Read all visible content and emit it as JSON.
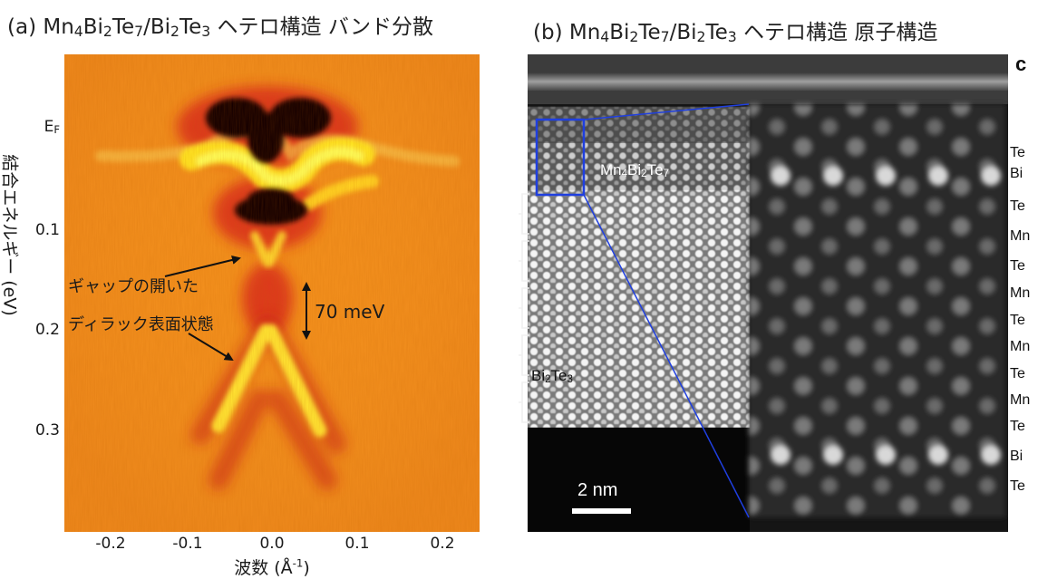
{
  "panel_a": {
    "title": {
      "prefix": "(a) Mn",
      "p1": "4",
      "t1": "Bi",
      "p2": "2",
      "t2": "Te",
      "p3": "7",
      "t3": "/Bi",
      "p4": "2",
      "t4": "Te",
      "p5": "3",
      "suffix": " ヘテロ構造 バンド分散"
    },
    "y_axis_label": "結合エネルギー (eV)",
    "y_ticks": {
      "ef_main": "E",
      "ef_sub": "F",
      "t1": "0.1",
      "t2": "0.2",
      "t3": "0.3"
    },
    "x_ticks": [
      "-0.2",
      "-0.1",
      "0.0",
      "0.1",
      "0.2"
    ],
    "x_axis_label": {
      "text": "波数 (Å",
      "sup": "-1",
      "close": ")"
    },
    "annotation": {
      "line1": "ギャップの開いた",
      "line2": "ディラック表面状態"
    },
    "gap_label": "70 meV",
    "colors": {
      "background": "#f28e1c",
      "band": "#ffef2a",
      "dark": "#120000"
    }
  },
  "panel_b": {
    "title": {
      "prefix": "(b) Mn",
      "p1": "4",
      "t1": "Bi",
      "p2": "2",
      "t2": "Te",
      "p3": "7",
      "t3": "/Bi",
      "p4": "2",
      "t4": "Te",
      "p5": "3",
      "suffix": " ヘテロ構造 原子構造"
    },
    "corner_letter": "c",
    "mn_label": {
      "a": "Mn",
      "b": "4",
      "c": "Bi",
      "d": "2",
      "e": "Te",
      "f": "7"
    },
    "bi_label": {
      "a": "Bi",
      "b": "2",
      "c": "Te",
      "d": "3"
    },
    "scale_bar": "2 nm",
    "layers": [
      "Te",
      "Bi",
      "Te",
      "Mn",
      "Te",
      "Mn",
      "Te",
      "Mn",
      "Te",
      "Mn",
      "Te",
      "Bi",
      "Te"
    ]
  }
}
